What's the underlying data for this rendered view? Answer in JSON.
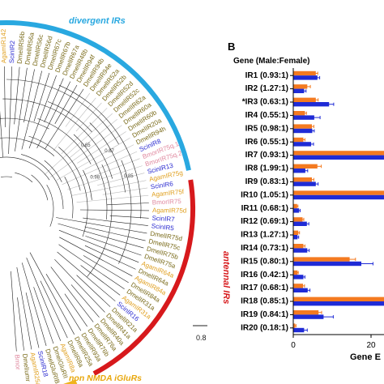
{
  "tree": {
    "clade_labels": {
      "divergent": "divergent IRs",
      "antennal": "antennal IRs",
      "non_nmda": "non NMDA iGluRs"
    },
    "colors": {
      "divergent_arc": "#29a8e0",
      "antennal_arc": "#d7191c",
      "non_nmda_arc": "#f0b41e",
      "dmel": "#7a6b1a",
      "agam": "#e0a020",
      "bmor": "#e08aa0",
      "scin": "#2a2ad0",
      "branch": "#222222",
      "branch_light": "#bbbbbb"
    },
    "scale_bar_label": "0.8",
    "support_labels": [
      "0.65",
      "0.87",
      "0.98",
      "0.85"
    ],
    "tip_labels": [
      {
        "text": "AgamIR135",
        "color": "agam"
      },
      {
        "text": "AgamIR136",
        "color": "agam"
      },
      {
        "text": "AgamIR139",
        "color": "agam"
      },
      {
        "text": "AgamIR142",
        "color": "agam"
      },
      {
        "text": "ScinIR2",
        "color": "scin"
      },
      {
        "text": "DmelIR56b",
        "color": "dmel"
      },
      {
        "text": "DmelIR56a",
        "color": "dmel"
      },
      {
        "text": "DmelIR56c",
        "color": "dmel"
      },
      {
        "text": "DmelIR56d",
        "color": "dmel"
      },
      {
        "text": "DmelIR67c",
        "color": "dmel"
      },
      {
        "text": "DmelIR67b",
        "color": "dmel"
      },
      {
        "text": "DmelIR67a",
        "color": "dmel"
      },
      {
        "text": "DmelIR48b",
        "color": "dmel"
      },
      {
        "text": "DmelIR94f",
        "color": "dmel"
      },
      {
        "text": "DmelIR94b",
        "color": "dmel"
      },
      {
        "text": "DmelIR94e",
        "color": "dmel"
      },
      {
        "text": "DmelIR52a",
        "color": "dmel"
      },
      {
        "text": "DmelIR52b",
        "color": "dmel"
      },
      {
        "text": "DmelIR52d",
        "color": "dmel"
      },
      {
        "text": "DmelIR52c",
        "color": "dmel"
      },
      {
        "text": "DmelIR62a",
        "color": "dmel"
      },
      {
        "text": "DmelIR60a",
        "color": "dmel"
      },
      {
        "text": "DmelIR60b",
        "color": "dmel"
      },
      {
        "text": "DmelIR20a",
        "color": "dmel"
      },
      {
        "text": "DmelIR94h",
        "color": "dmel"
      },
      {
        "text": "ScinIR8",
        "color": "scin"
      },
      {
        "text": "BmorIR75q.1",
        "color": "bmor"
      },
      {
        "text": "BmorIR75q.2",
        "color": "bmor"
      },
      {
        "text": "ScinIR13",
        "color": "scin"
      },
      {
        "text": "AgamIR75g",
        "color": "agam"
      },
      {
        "text": "ScinIR6",
        "color": "scin"
      },
      {
        "text": "AgamIR75f",
        "color": "agam"
      },
      {
        "text": "BmorIR75",
        "color": "bmor"
      },
      {
        "text": "AgamIR75d",
        "color": "agam"
      },
      {
        "text": "ScinIR7",
        "color": "scin"
      },
      {
        "text": "ScinIR5",
        "color": "scin"
      },
      {
        "text": "DmelIR75d",
        "color": "dmel"
      },
      {
        "text": "DmelIR75c",
        "color": "dmel"
      },
      {
        "text": "DmelIR75b",
        "color": "dmel"
      },
      {
        "text": "DmelIR75a",
        "color": "dmel"
      },
      {
        "text": "AgamIR64a",
        "color": "agam"
      },
      {
        "text": "DmelIR64a",
        "color": "dmel"
      },
      {
        "text": "AgamIR84a",
        "color": "agam"
      },
      {
        "text": "DmelIR84a",
        "color": "dmel"
      },
      {
        "text": "DmelIR31a",
        "color": "dmel"
      },
      {
        "text": "AgamIR31a",
        "color": "agam"
      },
      {
        "text": "ScinIR16",
        "color": "scin"
      },
      {
        "text": "DmelIR21a",
        "color": "dmel"
      },
      {
        "text": "DmelIR41a",
        "color": "dmel"
      },
      {
        "text": "DmelIR40a",
        "color": "dmel"
      },
      {
        "text": "DmelIR76a",
        "color": "dmel"
      },
      {
        "text": "DmelIR76b",
        "color": "dmel"
      },
      {
        "text": "DmelIR93a",
        "color": "dmel"
      },
      {
        "text": "DmelIR25a",
        "color": "dmel"
      },
      {
        "text": "DmelIR8a",
        "color": "dmel"
      },
      {
        "text": "AgamIR8a",
        "color": "agam"
      },
      {
        "text": "DmelGluRII",
        "color": "dmel"
      },
      {
        "text": "DmelGluRIB",
        "color": "dmel"
      },
      {
        "text": "ScinIR18",
        "color": "scin"
      },
      {
        "text": "AgamIR25a",
        "color": "agam"
      },
      {
        "text": "DmelIumr",
        "color": "dmel"
      },
      {
        "text": "Bmor",
        "color": "bmor"
      }
    ]
  },
  "panel_b": {
    "panel_letter": "B",
    "y_header": "Gene (Male:Female)",
    "xlabel": "Gene E",
    "x_tick_labels": [
      "0",
      "20"
    ],
    "male_color": "#f47a20",
    "female_color": "#1f2bd6"
  },
  "chart_data": {
    "type": "bar",
    "orientation": "horizontal",
    "categories": [
      "IR1 (0.93:1)",
      "IR2 (1.27:1)",
      "*IR3 (0.63:1)",
      "IR4 (0.55:1)",
      "IR5 (0.98:1)",
      "IR6 (0.55:1)",
      "IR7 (0.93:1)",
      "IR8 (1.99:1)",
      "IR9 (0.83:1)",
      "IR10 (1.05:1)",
      "IR11 (0.68:1)",
      "IR12 (0.69:1)",
      "IR13 (1.27:1)",
      "IR14 (0.73:1)",
      "IR15 (0.80:1)",
      "IR16 (0.42:1)",
      "IR17 (0.68:1)",
      "IR18 (0.85:1)",
      "IR19 (0.84:1)",
      "IR20 (0.18:1)"
    ],
    "series": [
      {
        "values": [
          5.8,
          3.6,
          5.8,
          3.0,
          4.8,
          2.6,
          23.5,
          6.2,
          4.8,
          24.0,
          1.0,
          2.4,
          1.3,
          2.6,
          14.5,
          1.1,
          2.5,
          24.0,
          6.5,
          0.5
        ],
        "errors": [
          0.5,
          0.8,
          0.6,
          0.4,
          0.5,
          0.4,
          1.2,
          1.0,
          0.5,
          1.0,
          0.2,
          0.3,
          0.3,
          0.4,
          1.5,
          0.2,
          0.4,
          1.2,
          0.8,
          0.2
        ]
      },
      {
        "values": [
          6.2,
          2.8,
          9.2,
          5.4,
          4.9,
          4.6,
          24.0,
          3.1,
          5.8,
          24.0,
          1.5,
          3.5,
          1.1,
          3.6,
          17.5,
          2.6,
          3.7,
          24.0,
          7.8,
          2.8
        ],
        "errors": [
          0.6,
          0.5,
          1.2,
          1.5,
          0.5,
          0.6,
          1.0,
          0.6,
          0.6,
          1.0,
          0.3,
          0.5,
          0.3,
          0.5,
          3.0,
          0.4,
          0.6,
          1.0,
          2.5,
          0.8
        ]
      }
    ],
    "xlim": [
      0,
      24
    ],
    "xlabel": "Gene E"
  }
}
